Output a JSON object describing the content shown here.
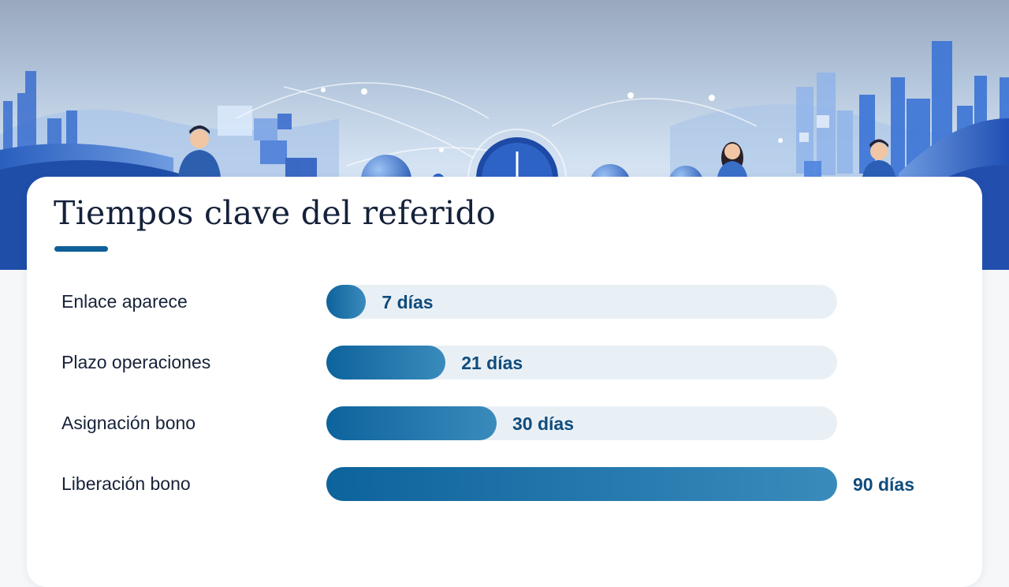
{
  "title": "Tiempos clave del referido",
  "theme": {
    "accent": "#0f5f98",
    "bar_start": "#0d639c",
    "bar_end": "#3a8bbc",
    "track": "#e9f0f5",
    "value_text": "#0f4c7c"
  },
  "chart_data": {
    "type": "bar",
    "orientation": "horizontal",
    "title": "Tiempos clave del referido",
    "categories": [
      "Enlace aparece",
      "Plazo operaciones",
      "Asignación bono",
      "Liberación bono"
    ],
    "values": [
      7,
      21,
      30,
      90
    ],
    "value_labels": [
      "7 días",
      "21 días",
      "30 días",
      "90 días"
    ],
    "xlim": [
      0,
      90
    ],
    "grid": false
  }
}
